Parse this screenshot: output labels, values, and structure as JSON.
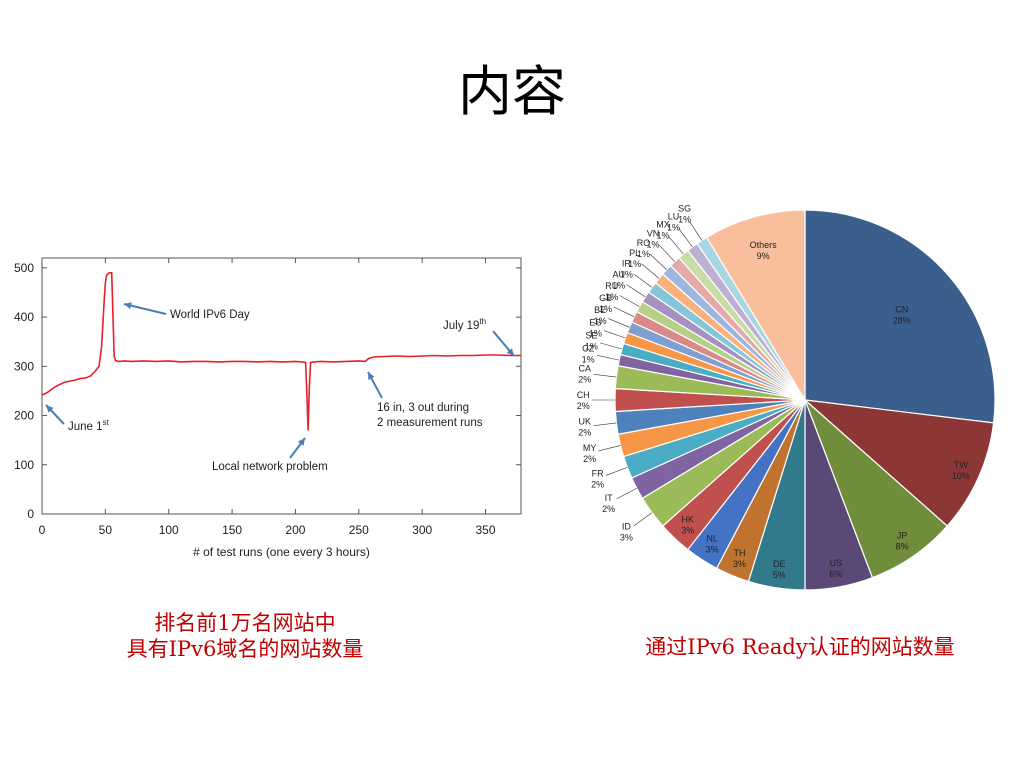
{
  "slide": {
    "title": "内容",
    "left_caption_line1": "排名前1万名网站中",
    "left_caption_line2": "具有IPv6域名的网站数量",
    "right_caption": "通过IPv6 Ready认证的网站数量"
  },
  "chart_data": [
    {
      "type": "line",
      "title": "",
      "xlabel": "# of test runs (one every 3 hours)",
      "ylabel": "",
      "xlim": [
        0,
        378
      ],
      "ylim": [
        0,
        520
      ],
      "xticks": [
        0,
        50,
        100,
        150,
        200,
        250,
        300,
        350
      ],
      "yticks": [
        0,
        100,
        200,
        300,
        400,
        500
      ],
      "grid": false,
      "color": "#e8202a",
      "series": [
        {
          "x": [
            0,
            3,
            6,
            10,
            14,
            18,
            22,
            26,
            30,
            34,
            38,
            42,
            45,
            47,
            49,
            50,
            51,
            53,
            55,
            56,
            57,
            58,
            60,
            65,
            70,
            80,
            90,
            100,
            110,
            120,
            130,
            140,
            150,
            160,
            170,
            180,
            190,
            200,
            205,
            208,
            209,
            210,
            211,
            212,
            215,
            220,
            230,
            240,
            250,
            255,
            258,
            262,
            270,
            280,
            290,
            300,
            310,
            320,
            330,
            340,
            350,
            360,
            370,
            378
          ],
          "y": [
            242,
            245,
            250,
            258,
            263,
            268,
            270,
            272,
            275,
            276,
            280,
            290,
            300,
            340,
            430,
            470,
            485,
            490,
            490,
            400,
            320,
            312,
            310,
            311,
            310,
            311,
            310,
            311,
            309,
            310,
            310,
            309,
            310,
            310,
            309,
            310,
            309,
            310,
            309,
            308,
            250,
            170,
            260,
            308,
            309,
            310,
            309,
            310,
            311,
            310,
            316,
            319,
            320,
            321,
            320,
            321,
            322,
            321,
            322,
            322,
            323,
            323,
            322,
            322
          ]
        }
      ],
      "annotations": [
        {
          "text": "World IPv6 Day",
          "x": 54,
          "y": 490
        },
        {
          "text": "July 19",
          "sup": "th",
          "x": 376,
          "y": 322
        },
        {
          "text": "June 1",
          "sup": "st",
          "x": 1,
          "y": 242
        },
        {
          "text": "16 in, 3 out during",
          "text2": "2 measurement runs",
          "x": 258,
          "y": 312
        },
        {
          "text": "Local network problem",
          "x": 210,
          "y": 170
        }
      ]
    },
    {
      "type": "pie",
      "title": "",
      "slices": [
        {
          "label": "CN",
          "value": 28,
          "pct": "28%",
          "color": "#3a5f8c"
        },
        {
          "label": "TW",
          "value": 10,
          "pct": "10%",
          "color": "#8c3736"
        },
        {
          "label": "JP",
          "value": 8,
          "pct": "8%",
          "color": "#6f8d3b"
        },
        {
          "label": "US",
          "value": 6,
          "pct": "6%",
          "color": "#5a4877"
        },
        {
          "label": "DE",
          "value": 5,
          "pct": "5%",
          "color": "#307a8c"
        },
        {
          "label": "TH",
          "value": 3,
          "pct": "3%",
          "color": "#c0722f"
        },
        {
          "label": "NL",
          "value": 3,
          "pct": "3%",
          "color": "#4472c4"
        },
        {
          "label": "HK",
          "value": 3,
          "pct": "3%",
          "color": "#c0504d"
        },
        {
          "label": "ID",
          "value": 3,
          "pct": "3%",
          "color": "#9bbb59"
        },
        {
          "label": "IT",
          "value": 2,
          "pct": "2%",
          "color": "#8064a2"
        },
        {
          "label": "FR",
          "value": 2,
          "pct": "2%",
          "color": "#4bacc6"
        },
        {
          "label": "MY",
          "value": 2,
          "pct": "2%",
          "color": "#f79646"
        },
        {
          "label": "UK",
          "value": 2,
          "pct": "2%",
          "color": "#4f81bd"
        },
        {
          "label": "CH",
          "value": 2,
          "pct": "2%",
          "color": "#c0504d"
        },
        {
          "label": "CA",
          "value": 2,
          "pct": "2%",
          "color": "#9bbb59"
        },
        {
          "label": "CZ",
          "value": 1,
          "pct": "1%",
          "color": "#8064a2"
        },
        {
          "label": "SE",
          "value": 1,
          "pct": "1%",
          "color": "#4bacc6"
        },
        {
          "label": "ES",
          "value": 1,
          "pct": "1%",
          "color": "#f79646"
        },
        {
          "label": "BE",
          "value": 1,
          "pct": "1%",
          "color": "#7f9fd0"
        },
        {
          "label": "GB",
          "value": 1,
          "pct": "1%",
          "color": "#d88a88"
        },
        {
          "label": "RU",
          "value": 1,
          "pct": "1%",
          "color": "#b7cf88"
        },
        {
          "label": "AU",
          "value": 1,
          "pct": "1%",
          "color": "#a592c1"
        },
        {
          "label": "IR",
          "value": 1,
          "pct": "1%",
          "color": "#85c6d8"
        },
        {
          "label": "PL",
          "value": 1,
          "pct": "1%",
          "color": "#f9b27e"
        },
        {
          "label": "RO",
          "value": 1,
          "pct": "1%",
          "color": "#9db6dd"
        },
        {
          "label": "VN",
          "value": 1,
          "pct": "1%",
          "color": "#e3aaa9"
        },
        {
          "label": "MX",
          "value": 1,
          "pct": "1%",
          "color": "#c9dca6"
        },
        {
          "label": "LU",
          "value": 1,
          "pct": "1%",
          "color": "#bdb0d4"
        },
        {
          "label": "SG",
          "value": 1,
          "pct": "1%",
          "color": "#a9d6e3"
        },
        {
          "label": "Others",
          "value": 9,
          "pct": "9%",
          "color": "#f9bf9c"
        }
      ]
    }
  ]
}
